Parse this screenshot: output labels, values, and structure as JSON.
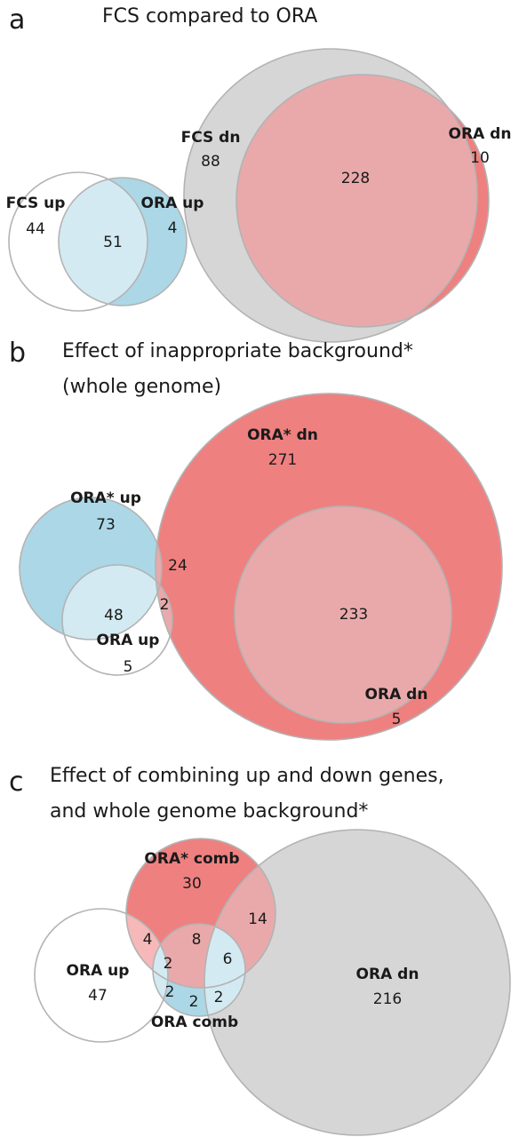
{
  "colors": {
    "white_fill": "#ffffff",
    "grey_fill": "#d6d6d6",
    "red_fill": "#ef8080",
    "pink_fill": "#e9a9aa",
    "light_pink_fill": "#f6b8b8",
    "blue_fill": "#acd7e6",
    "light_blue_fill": "#d3eaf2",
    "outline": "#b3b3b3"
  },
  "panels": [
    {
      "letter": "a",
      "title_lines": [
        "FCS compared to ORA"
      ],
      "sets": [
        {
          "name": "FCS up"
        },
        {
          "name": "ORA up"
        },
        {
          "name": "FCS dn"
        },
        {
          "name": "ORA dn"
        }
      ],
      "regions": [
        {
          "sets": [
            "FCS up"
          ],
          "count": "44"
        },
        {
          "sets": [
            "FCS up",
            "ORA up"
          ],
          "count": "51"
        },
        {
          "sets": [
            "ORA up"
          ],
          "count": "4"
        },
        {
          "sets": [
            "FCS dn"
          ],
          "count": "88"
        },
        {
          "sets": [
            "FCS dn",
            "ORA dn"
          ],
          "count": "228"
        },
        {
          "sets": [
            "ORA dn"
          ],
          "count": "10"
        }
      ]
    },
    {
      "letter": "b",
      "title_lines": [
        "Effect of inappropriate background*",
        "(whole genome)"
      ],
      "sets": [
        {
          "name": "ORA* up"
        },
        {
          "name": "ORA up"
        },
        {
          "name": "ORA* dn"
        },
        {
          "name": "ORA dn"
        }
      ],
      "regions": [
        {
          "sets": [
            "ORA* up"
          ],
          "count": "73"
        },
        {
          "sets": [
            "ORA* up",
            "ORA* dn"
          ],
          "count": "24"
        },
        {
          "sets": [
            "ORA* up",
            "ORA up"
          ],
          "count": "48"
        },
        {
          "sets": [
            "ORA* up",
            "ORA up",
            "ORA* dn"
          ],
          "count": "2"
        },
        {
          "sets": [
            "ORA up"
          ],
          "count": "5"
        },
        {
          "sets": [
            "ORA* dn"
          ],
          "count": "271"
        },
        {
          "sets": [
            "ORA* dn",
            "ORA dn"
          ],
          "count": "233"
        },
        {
          "sets": [
            "ORA dn"
          ],
          "count": "5"
        }
      ]
    },
    {
      "letter": "c",
      "title_lines": [
        "Effect of combining up and down genes,",
        "and whole genome background*"
      ],
      "sets": [
        {
          "name": "ORA* comb"
        },
        {
          "name": "ORA up"
        },
        {
          "name": "ORA comb"
        },
        {
          "name": "ORA dn"
        }
      ],
      "regions": [
        {
          "sets": [
            "ORA* comb"
          ],
          "count": "30"
        },
        {
          "sets": [
            "ORA* comb",
            "ORA dn"
          ],
          "count": "14"
        },
        {
          "sets": [
            "ORA* comb",
            "ORA up"
          ],
          "count": "4"
        },
        {
          "sets": [
            "ORA* comb",
            "ORA comb"
          ],
          "count": "8"
        },
        {
          "sets": [
            "ORA* comb",
            "ORA comb",
            "ORA up"
          ],
          "count": "2"
        },
        {
          "sets": [
            "ORA* comb",
            "ORA comb",
            "ORA dn"
          ],
          "count": "6"
        },
        {
          "sets": [
            "ORA up"
          ],
          "count": "47"
        },
        {
          "sets": [
            "ORA up",
            "ORA comb"
          ],
          "count": "2"
        },
        {
          "sets": [
            "ORA comb"
          ],
          "count": "2"
        },
        {
          "sets": [
            "ORA comb",
            "ORA dn"
          ],
          "count": "2"
        },
        {
          "sets": [
            "ORA dn"
          ],
          "count": "216"
        }
      ]
    }
  ]
}
